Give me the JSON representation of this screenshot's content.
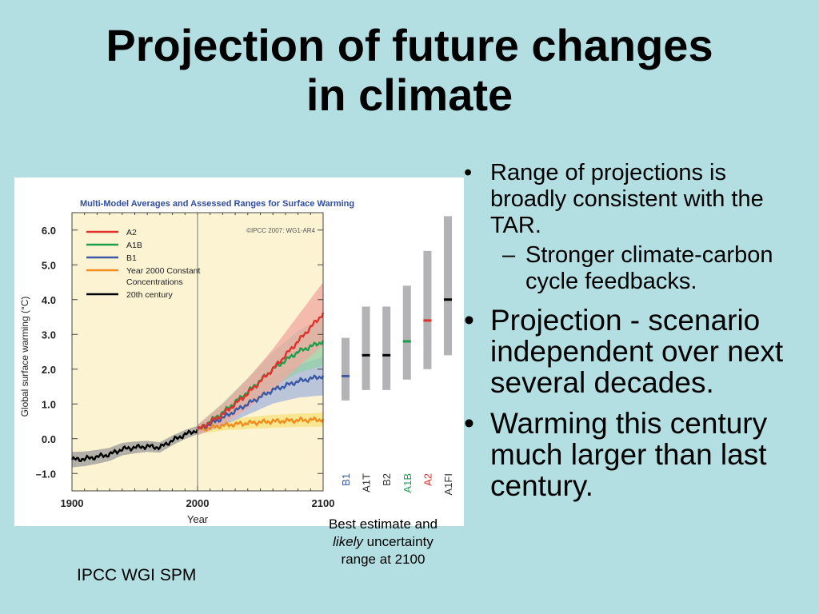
{
  "slide": {
    "title_line1": "Projection of future changes",
    "title_line2": "in climate",
    "bullets": [
      {
        "text": "Range of projections is broadly consistent with the TAR.",
        "sub": "Stronger climate-carbon cycle feedbacks."
      },
      {
        "text": "Projection - scenario independent over next several decades."
      },
      {
        "text": "Warming this century much larger than last century."
      }
    ],
    "note_part1": "Best estimate and",
    "note_italic": "likely",
    "note_part2": "uncertainty range at 2100",
    "source": "IPCC WGI SPM",
    "bullet_glyph": "•",
    "dash_glyph": "–"
  },
  "chart_data": {
    "type": "line",
    "title": "Multi-Model Averages and Assessed Ranges for Surface Warming",
    "copyright": "©IPCC 2007: WG1-AR4",
    "xlabel": "Year",
    "ylabel": "Global surface warming (°C)",
    "xlim": [
      1900,
      2100
    ],
    "ylim": [
      -1.5,
      6.5
    ],
    "xticks": [
      1900,
      2000,
      2100
    ],
    "yticks": [
      {
        "v": 6,
        "label": "6.0"
      },
      {
        "v": 5,
        "label": "5.0"
      },
      {
        "v": 4,
        "label": "4.0"
      },
      {
        "v": 3,
        "label": "3.0"
      },
      {
        "v": 2,
        "label": "2.0"
      },
      {
        "v": 1,
        "label": "1.0"
      },
      {
        "v": 0,
        "label": "0.0"
      },
      {
        "v": -1,
        "label": "–1.0"
      }
    ],
    "series": [
      {
        "name": "A2",
        "color": "#e0312a",
        "band": "#f2a8a0",
        "points": [
          [
            2000,
            0.25
          ],
          [
            2020,
            0.7
          ],
          [
            2040,
            1.3
          ],
          [
            2060,
            2.0
          ],
          [
            2080,
            2.8
          ],
          [
            2100,
            3.6
          ]
        ],
        "spread": [
          [
            2000,
            0.15
          ],
          [
            2050,
            0.5
          ],
          [
            2100,
            0.9
          ]
        ]
      },
      {
        "name": "A1B",
        "color": "#1d9e4b",
        "band": "#93cfa6",
        "points": [
          [
            2000,
            0.25
          ],
          [
            2020,
            0.75
          ],
          [
            2040,
            1.35
          ],
          [
            2060,
            2.0
          ],
          [
            2080,
            2.5
          ],
          [
            2100,
            2.8
          ]
        ],
        "spread": [
          [
            2000,
            0.15
          ],
          [
            2050,
            0.45
          ],
          [
            2100,
            0.7
          ]
        ]
      },
      {
        "name": "B1",
        "color": "#3b5aa6",
        "band": "#a6b6dc",
        "points": [
          [
            2000,
            0.25
          ],
          [
            2020,
            0.6
          ],
          [
            2040,
            1.0
          ],
          [
            2060,
            1.4
          ],
          [
            2080,
            1.65
          ],
          [
            2100,
            1.8
          ]
        ],
        "spread": [
          [
            2000,
            0.15
          ],
          [
            2050,
            0.35
          ],
          [
            2100,
            0.55
          ]
        ]
      },
      {
        "name": "Year 2000 Constant Concentrations",
        "color": "#f08c1e",
        "band": "#f7e27a",
        "points": [
          [
            2000,
            0.25
          ],
          [
            2020,
            0.38
          ],
          [
            2040,
            0.45
          ],
          [
            2060,
            0.5
          ],
          [
            2080,
            0.53
          ],
          [
            2100,
            0.55
          ]
        ],
        "spread": [
          [
            2000,
            0.12
          ],
          [
            2050,
            0.18
          ],
          [
            2100,
            0.2
          ]
        ]
      },
      {
        "name": "20th century",
        "color": "#000000",
        "band": "#9a9a9a",
        "points": [
          [
            1900,
            -0.6
          ],
          [
            1910,
            -0.58
          ],
          [
            1920,
            -0.52
          ],
          [
            1930,
            -0.45
          ],
          [
            1940,
            -0.3
          ],
          [
            1950,
            -0.25
          ],
          [
            1960,
            -0.22
          ],
          [
            1970,
            -0.25
          ],
          [
            1980,
            -0.05
          ],
          [
            1990,
            0.12
          ],
          [
            2000,
            0.25
          ]
        ],
        "spread": [
          [
            1900,
            0.22
          ],
          [
            2000,
            0.12
          ]
        ]
      }
    ],
    "ranges_2100": [
      {
        "scenario": "B1",
        "label_color": "#3b5aa6",
        "low": 1.1,
        "high": 2.9,
        "best": 1.8,
        "best_color": "#3b5aa6"
      },
      {
        "scenario": "A1T",
        "label_color": "#333333",
        "low": 1.4,
        "high": 3.8,
        "best": 2.4,
        "best_color": "#000000"
      },
      {
        "scenario": "B2",
        "label_color": "#333333",
        "low": 1.4,
        "high": 3.8,
        "best": 2.4,
        "best_color": "#000000"
      },
      {
        "scenario": "A1B",
        "label_color": "#1d9e4b",
        "low": 1.7,
        "high": 4.4,
        "best": 2.8,
        "best_color": "#1d9e4b"
      },
      {
        "scenario": "A2",
        "label_color": "#e0312a",
        "low": 2.0,
        "high": 5.4,
        "best": 3.4,
        "best_color": "#e0312a"
      },
      {
        "scenario": "A1FI",
        "label_color": "#333333",
        "low": 2.4,
        "high": 6.4,
        "best": 4.0,
        "best_color": "#000000"
      }
    ],
    "plot_background": "#fcf3d2",
    "title_color": "#2f4da0",
    "range_bar_color": "#b3b3b5"
  }
}
